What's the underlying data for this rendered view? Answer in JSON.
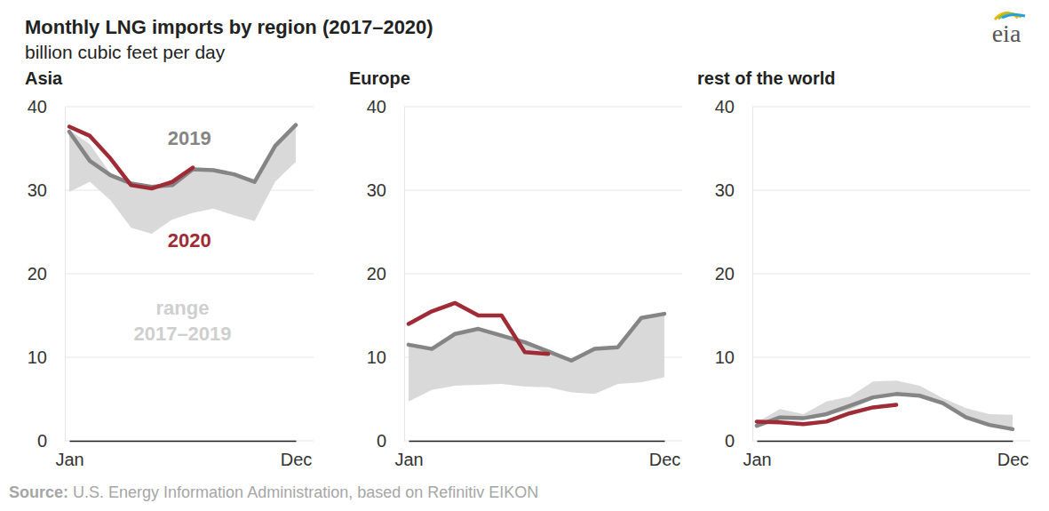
{
  "title": "Monthly LNG imports by region (2017–2020)",
  "subtitle": "billion cubic feet per day",
  "source_label": "Source:",
  "source": "U.S. Energy Information Administration, based on Refinitiv EIKON",
  "logo": "eia",
  "chart_data": [
    {
      "type": "line",
      "title": "Asia",
      "categories": [
        "Jan",
        null,
        null,
        null,
        null,
        null,
        null,
        null,
        null,
        null,
        null,
        "Dec"
      ],
      "ylim": [
        0,
        40
      ],
      "yticks": [
        0,
        10,
        20,
        30,
        40
      ],
      "grid": true,
      "series": [
        {
          "name": "range 2017–2019",
          "type": "area",
          "color": "#d9d9d9",
          "low": [
            29.8,
            31.0,
            28.8,
            25.5,
            24.8,
            26.5,
            27.3,
            27.8,
            27.0,
            26.3,
            31.0,
            33.4
          ],
          "high": [
            37.2,
            35.5,
            32.0,
            31.0,
            30.5,
            30.6,
            32.5,
            32.4,
            31.9,
            31.0,
            35.3,
            37.8
          ]
        },
        {
          "name": "2019",
          "type": "line",
          "color": "#858585",
          "values": [
            37.0,
            33.5,
            31.8,
            30.8,
            30.4,
            30.6,
            32.5,
            32.4,
            31.9,
            31.0,
            35.3,
            37.8
          ]
        },
        {
          "name": "2020",
          "type": "line",
          "color": "#9e2b36",
          "values": [
            37.6,
            36.5,
            33.8,
            30.6,
            30.2,
            31.0,
            32.7,
            null,
            null,
            null,
            null,
            null
          ]
        }
      ]
    },
    {
      "type": "line",
      "title": "Europe",
      "categories": [
        "Jan",
        null,
        null,
        null,
        null,
        null,
        null,
        null,
        null,
        null,
        null,
        "Dec"
      ],
      "ylim": [
        0,
        40
      ],
      "yticks": [
        0,
        10,
        20,
        30,
        40
      ],
      "grid": true,
      "series": [
        {
          "type": "area",
          "color": "#d9d9d9",
          "low": [
            4.7,
            6.1,
            6.6,
            6.7,
            6.8,
            6.5,
            6.4,
            5.8,
            5.6,
            6.8,
            7.0,
            7.6
          ],
          "high": [
            11.5,
            11.2,
            12.8,
            13.4,
            12.6,
            11.8,
            10.8,
            9.6,
            11.0,
            11.2,
            14.7,
            15.2
          ]
        },
        {
          "type": "line",
          "color": "#858585",
          "values": [
            11.5,
            11.0,
            12.8,
            13.4,
            12.6,
            11.8,
            10.7,
            9.6,
            11.0,
            11.2,
            14.7,
            15.2
          ]
        },
        {
          "type": "line",
          "color": "#9e2b36",
          "values": [
            14.0,
            15.5,
            16.5,
            15.0,
            15.0,
            10.6,
            10.4,
            null,
            null,
            null,
            null,
            null
          ]
        }
      ]
    },
    {
      "type": "line",
      "title": "rest of the world",
      "categories": [
        "Jan",
        null,
        null,
        null,
        null,
        null,
        null,
        null,
        null,
        null,
        null,
        "Dec"
      ],
      "ylim": [
        0,
        40
      ],
      "yticks": [
        0,
        10,
        20,
        30,
        40
      ],
      "grid": true,
      "series": [
        {
          "type": "area",
          "color": "#d9d9d9",
          "low": [
            1.8,
            2.5,
            2.5,
            3.0,
            3.7,
            5.0,
            5.5,
            5.3,
            4.4,
            2.7,
            1.8,
            1.4
          ],
          "high": [
            2.2,
            3.8,
            3.2,
            4.7,
            5.3,
            7.1,
            7.2,
            6.6,
            5.1,
            3.9,
            3.2,
            3.1
          ]
        },
        {
          "type": "line",
          "color": "#858585",
          "values": [
            1.8,
            2.8,
            2.7,
            3.2,
            4.2,
            5.2,
            5.6,
            5.4,
            4.5,
            2.8,
            1.9,
            1.4
          ]
        },
        {
          "type": "line",
          "color": "#9e2b36",
          "values": [
            2.3,
            2.2,
            2.0,
            2.3,
            3.3,
            4.0,
            4.3,
            null,
            null,
            null,
            null,
            null
          ]
        }
      ]
    }
  ]
}
